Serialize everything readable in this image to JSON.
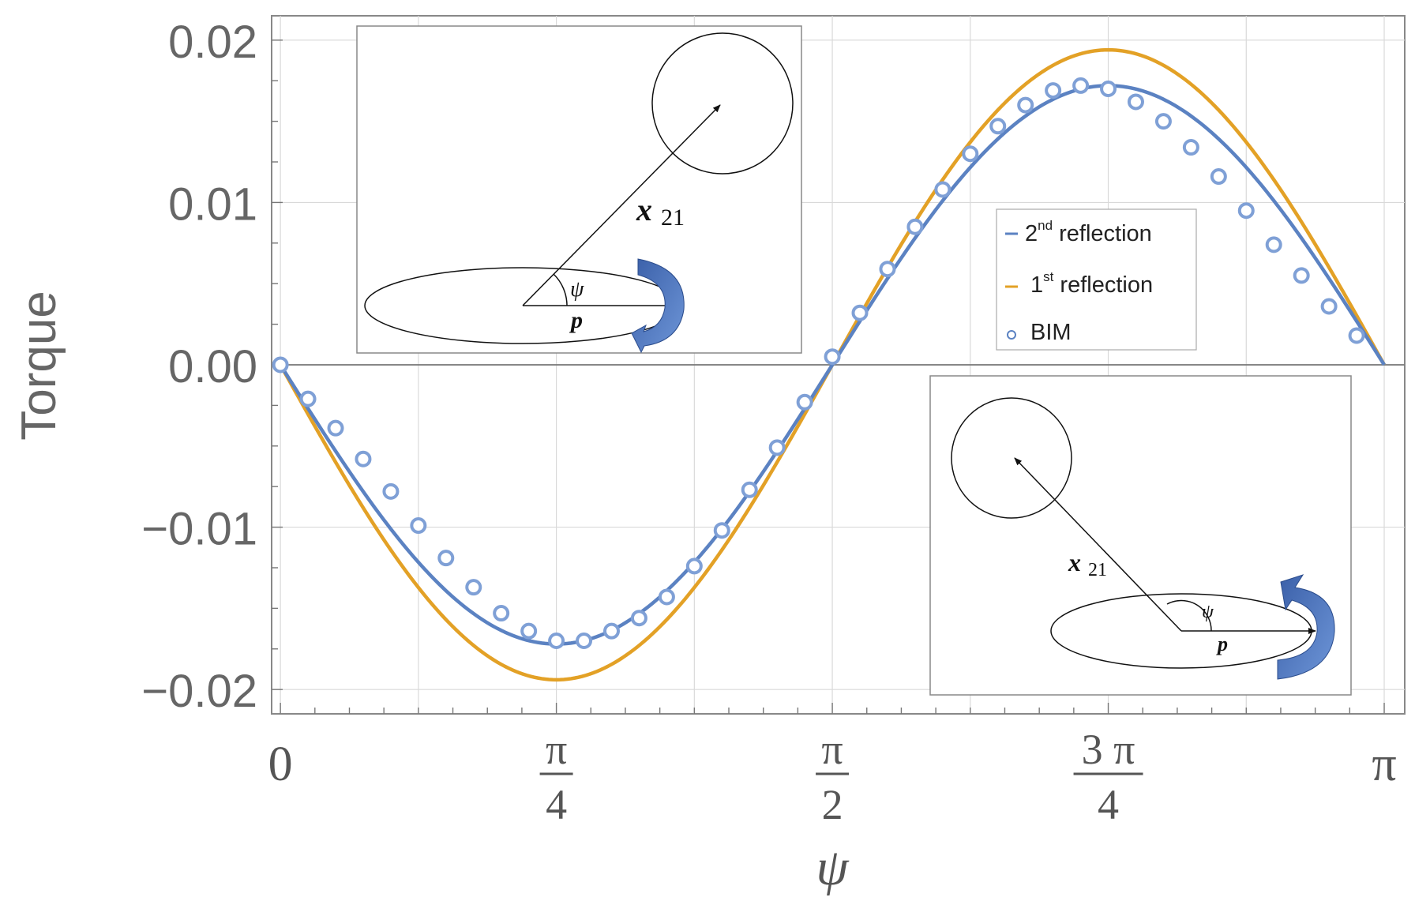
{
  "chart_data": {
    "type": "line",
    "title": "",
    "xlabel": "ψ",
    "ylabel": "Torque",
    "xlim": [
      -0.025,
      3.2
    ],
    "ylim": [
      -0.0215,
      0.0215
    ],
    "x_ticks": [
      {
        "value": 0,
        "label": "0"
      },
      {
        "value": 0.7854,
        "numerator": "π",
        "denominator": "4"
      },
      {
        "value": 1.5708,
        "numerator": "π",
        "denominator": "2"
      },
      {
        "value": 2.3562,
        "numerator": "3 π",
        "denominator": "4"
      },
      {
        "value": 3.1416,
        "label": "π"
      }
    ],
    "y_ticks": [
      {
        "value": 0.02,
        "label": "0.02"
      },
      {
        "value": 0.01,
        "label": "0.01"
      },
      {
        "value": 0.0,
        "label": "0.00"
      },
      {
        "value": -0.01,
        "label": "−0.01"
      },
      {
        "value": -0.02,
        "label": "−0.02"
      }
    ],
    "grid": true,
    "series": [
      {
        "name": "1st reflection",
        "style": "line",
        "color": "#E3A126",
        "amplitude": 0.0194,
        "x_range": [
          0.0,
          3.1416
        ]
      },
      {
        "name": "2nd reflection",
        "style": "line",
        "color": "#5B82C2",
        "amplitude": 0.0172,
        "x_range": [
          0.0,
          3.1416
        ]
      },
      {
        "name": "BIM",
        "style": "markers",
        "color": "#5B82C2",
        "x": [
          0.0,
          0.0785,
          0.1571,
          0.2356,
          0.3142,
          0.3927,
          0.4712,
          0.5498,
          0.6283,
          0.7069,
          0.7854,
          0.8639,
          0.9425,
          1.021,
          1.0996,
          1.1781,
          1.2566,
          1.3352,
          1.4137,
          1.4923,
          1.5708,
          1.6493,
          1.7279,
          1.8064,
          1.885,
          1.9635,
          2.042,
          2.1206,
          2.1991,
          2.2777,
          2.3562,
          2.4347,
          2.5133,
          2.5918,
          2.6704,
          2.7489,
          2.8274,
          2.906,
          2.9845,
          3.0631
        ],
        "y": [
          0.0,
          -0.0021,
          -0.0039,
          -0.0058,
          -0.0078,
          -0.0099,
          -0.0119,
          -0.0137,
          -0.0153,
          -0.0164,
          -0.017,
          -0.017,
          -0.0164,
          -0.0156,
          -0.0143,
          -0.0124,
          -0.0102,
          -0.0077,
          -0.0051,
          -0.0023,
          0.0005,
          0.0032,
          0.0059,
          0.0085,
          0.0108,
          0.013,
          0.0147,
          0.016,
          0.0169,
          0.0172,
          0.017,
          0.0162,
          0.015,
          0.0134,
          0.0116,
          0.0095,
          0.0074,
          0.0055,
          0.0036,
          0.0018
        ]
      }
    ],
    "legend": {
      "placement": "upper-right inside plot",
      "entries": [
        {
          "label": "2",
          "sup": "nd",
          "rest": " reflection",
          "marker": "line",
          "color": "#5B82C2"
        },
        {
          "label": "1",
          "sup": "st",
          "rest": " reflection",
          "marker": "line",
          "color": "#E3A126"
        },
        {
          "label": "BIM",
          "sup": "",
          "rest": "",
          "marker": "circle",
          "color": "#5B82C2"
        }
      ]
    },
    "insets": [
      {
        "placement": "upper-left",
        "vector_label": "x",
        "vector_subscript": "21",
        "angle_label": "ψ",
        "axis_label": "p",
        "rotation": "clockwise"
      },
      {
        "placement": "lower-right",
        "vector_label": "x",
        "vector_subscript": "21",
        "angle_label": "ψ",
        "axis_label": "p",
        "rotation": "counterclockwise"
      }
    ]
  }
}
